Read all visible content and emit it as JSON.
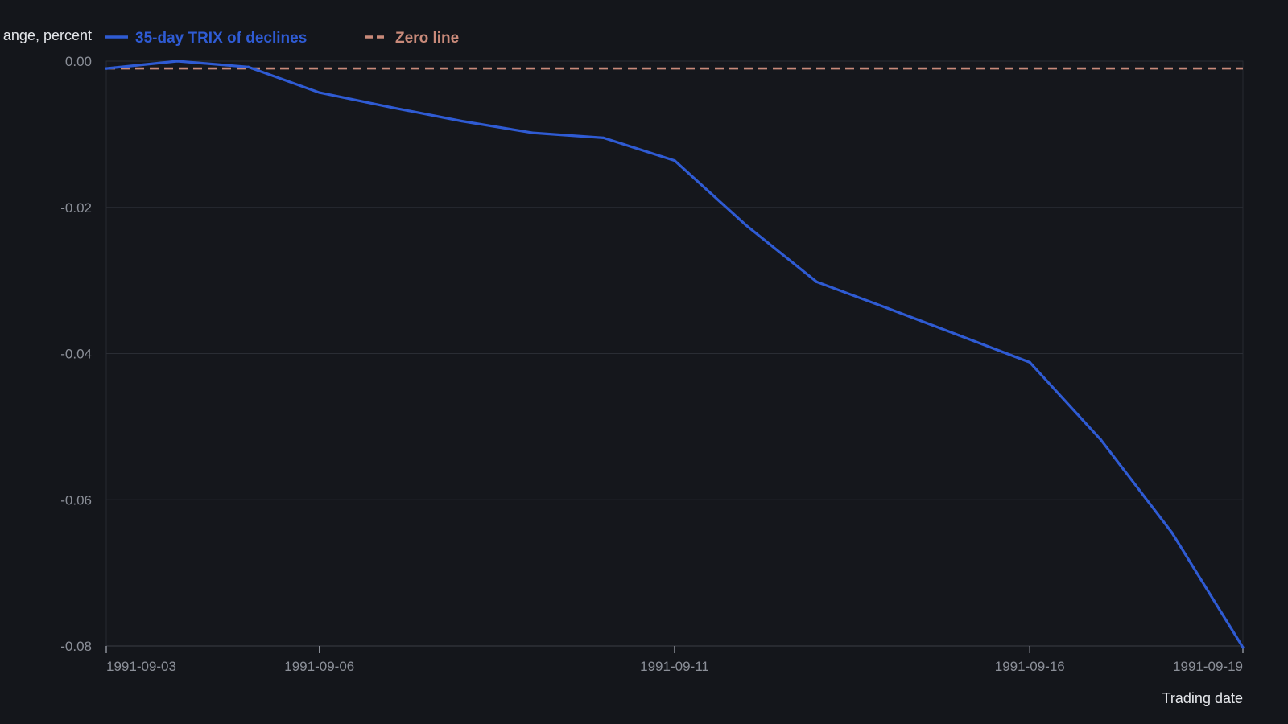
{
  "chart_data": {
    "type": "line",
    "title": "",
    "xlabel": "Trading date",
    "ylabel": "ange, percent",
    "x": [
      "1991-09-03",
      "1991-09-04",
      "1991-09-05",
      "1991-09-06",
      "1991-09-07",
      "1991-09-08",
      "1991-09-09",
      "1991-09-10",
      "1991-09-11",
      "1991-09-12",
      "1991-09-13",
      "1991-09-14",
      "1991-09-15",
      "1991-09-16",
      "1991-09-17",
      "1991-09-18",
      "1991-09-19"
    ],
    "x_ticks": [
      "1991-09-03",
      "1991-09-06",
      "1991-09-11",
      "1991-09-16",
      "1991-09-19"
    ],
    "ylim": [
      -0.08,
      0.0
    ],
    "y_ticks": [
      0.0,
      -0.02,
      -0.04,
      -0.06,
      -0.08
    ],
    "y_tick_labels": [
      "0.00",
      "-0.02",
      "-0.04",
      "-0.06",
      "-0.08"
    ],
    "grid": true,
    "legend_position": "top-left",
    "series": [
      {
        "name": "35-day TRIX of declines",
        "color": "#2f5bd3",
        "style": "solid",
        "values": [
          -0.001,
          0.0,
          -0.0008,
          -0.0043,
          -0.0063,
          -0.0082,
          -0.0098,
          -0.0105,
          -0.0136,
          -0.0224,
          -0.0302,
          -0.0338,
          -0.0375,
          -0.0412,
          -0.0518,
          -0.0645,
          -0.0802
        ]
      },
      {
        "name": "Zero line",
        "color": "#c98a7a",
        "style": "dashed",
        "values": [
          -0.001,
          -0.001,
          -0.001,
          -0.001,
          -0.001,
          -0.001,
          -0.001,
          -0.001,
          -0.001,
          -0.001,
          -0.001,
          -0.001,
          -0.001,
          -0.001,
          -0.001,
          -0.001,
          -0.001
        ]
      }
    ]
  }
}
